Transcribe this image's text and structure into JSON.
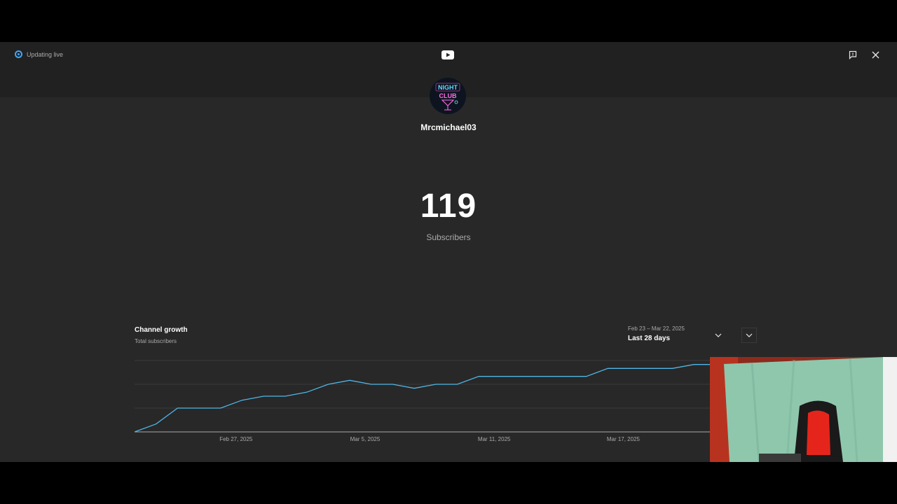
{
  "status": {
    "live_label": "Updating live"
  },
  "header": {
    "logo_icon": "youtube-logo-icon",
    "feedback_icon": "feedback-icon",
    "close_icon": "close-icon"
  },
  "channel": {
    "name": "Mrcmichael03",
    "avatar_text_line1": "NIGHT",
    "avatar_text_line2": "CLUB"
  },
  "stats": {
    "subscriber_count": "119",
    "subscriber_label": "Subscribers"
  },
  "growth": {
    "title": "Channel growth",
    "subtitle": "Total subscribers",
    "date_range": "Feb 23 – Mar 22, 2025",
    "period": "Last 28 days"
  },
  "chart_data": {
    "type": "line",
    "title": "Channel growth",
    "subtitle": "Total subscribers",
    "x_tick_labels": [
      "Feb 27, 2025",
      "Mar 5, 2025",
      "Mar 11, 2025",
      "Mar 17, 2025"
    ],
    "x_tick_days": [
      4,
      10,
      16,
      22
    ],
    "x_days": [
      0,
      1,
      2,
      3,
      4,
      5,
      6,
      7,
      8,
      9,
      10,
      11,
      12,
      13,
      14,
      15,
      16,
      17,
      18,
      19,
      20,
      21,
      22,
      23,
      24,
      25,
      26,
      27
    ],
    "values": [
      100,
      101,
      103,
      103,
      103,
      104,
      104.5,
      104.5,
      105,
      106,
      106.5,
      106,
      106,
      105.5,
      106,
      106,
      107,
      107,
      107,
      107,
      107,
      107,
      108,
      108,
      108,
      108,
      108.5,
      108.5
    ],
    "ylim": [
      100,
      109
    ],
    "grid": true,
    "line_color": "#4fb6e6"
  },
  "colors": {
    "accent": "#3ea6ff",
    "line": "#4fb6e6",
    "background": "#282828"
  }
}
